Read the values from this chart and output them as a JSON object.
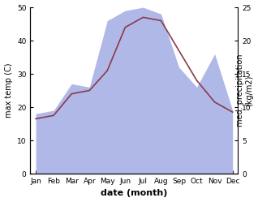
{
  "months": [
    "Jan",
    "Feb",
    "Mar",
    "Apr",
    "May",
    "Jun",
    "Jul",
    "Aug",
    "Sep",
    "Oct",
    "Nov",
    "Dec"
  ],
  "temperature": [
    16.5,
    17.5,
    24.0,
    25.0,
    31.0,
    44.0,
    47.0,
    46.0,
    37.0,
    28.0,
    21.5,
    18.5
  ],
  "precipitation": [
    9.0,
    9.5,
    13.5,
    13.0,
    23.0,
    24.5,
    25.0,
    24.0,
    16.0,
    13.0,
    18.0,
    9.5
  ],
  "temp_color": "#8b3a4a",
  "precip_color": "#b0b8e8",
  "left_ylim": [
    0,
    50
  ],
  "right_ylim": [
    0,
    25
  ],
  "left_yticks": [
    0,
    10,
    20,
    30,
    40,
    50
  ],
  "right_yticks": [
    0,
    5,
    10,
    15,
    20,
    25
  ],
  "xlabel": "date (month)",
  "ylabel_left": "max temp (C)",
  "ylabel_right": "med. precipitation\n(kg/m2)",
  "bg_color": "#ffffff",
  "axis_fontsize": 7,
  "tick_fontsize": 6.5,
  "xlabel_fontsize": 8
}
